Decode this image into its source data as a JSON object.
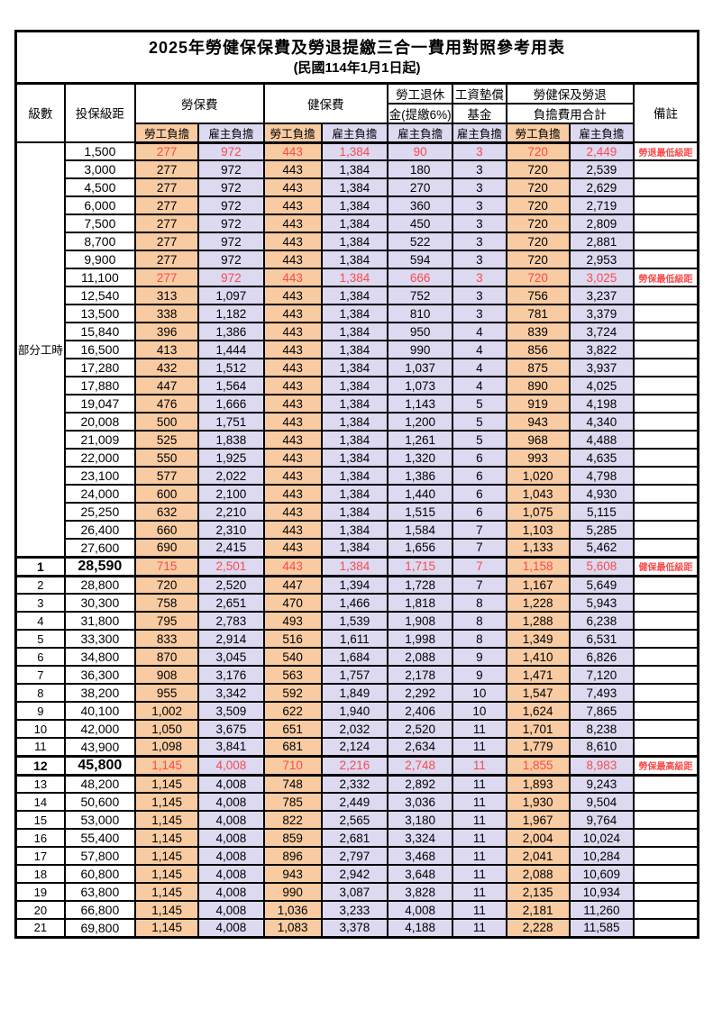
{
  "title": "2025年勞健保保費及勞退提繳三合一費用對照參考用表",
  "subtitle": "(民國114年1月1日起)",
  "colors": {
    "employee_column_bg": "#f8cba2",
    "employer_column_bg": "#dcd9f1",
    "highlight_red": "#fa4b4b",
    "grid": "#000000"
  },
  "header": {
    "level": "級數",
    "bracket": "投保級距",
    "labor_insurance": "勞保費",
    "health_insurance": "健保費",
    "pension_line1": "勞工退休",
    "pension_line2": "金(提繳6%)",
    "wage_fund_line1": "工資墊償",
    "wage_fund_line2": "基金",
    "total_line1": "勞健保及勞退",
    "total_line2": "負擔費用合計",
    "remark": "備註",
    "employee": "勞工負擔",
    "employer": "雇主負擔"
  },
  "part_time_label": "部分工時",
  "rows": [
    {
      "level": "",
      "bracket": "1,500",
      "li_emp": "277",
      "li_er": "972",
      "hi_emp": "443",
      "hi_er": "1,384",
      "pension_er": "90",
      "fund_er": "3",
      "total_emp": "720",
      "total_er": "2,449",
      "note": "勞退最低級距",
      "red": true,
      "bold": false,
      "thick": false
    },
    {
      "level": "",
      "bracket": "3,000",
      "li_emp": "277",
      "li_er": "972",
      "hi_emp": "443",
      "hi_er": "1,384",
      "pension_er": "180",
      "fund_er": "3",
      "total_emp": "720",
      "total_er": "2,539",
      "note": "",
      "red": false,
      "bold": false,
      "thick": false
    },
    {
      "level": "",
      "bracket": "4,500",
      "li_emp": "277",
      "li_er": "972",
      "hi_emp": "443",
      "hi_er": "1,384",
      "pension_er": "270",
      "fund_er": "3",
      "total_emp": "720",
      "total_er": "2,629",
      "note": "",
      "red": false,
      "bold": false,
      "thick": false
    },
    {
      "level": "",
      "bracket": "6,000",
      "li_emp": "277",
      "li_er": "972",
      "hi_emp": "443",
      "hi_er": "1,384",
      "pension_er": "360",
      "fund_er": "3",
      "total_emp": "720",
      "total_er": "2,719",
      "note": "",
      "red": false,
      "bold": false,
      "thick": false
    },
    {
      "level": "",
      "bracket": "7,500",
      "li_emp": "277",
      "li_er": "972",
      "hi_emp": "443",
      "hi_er": "1,384",
      "pension_er": "450",
      "fund_er": "3",
      "total_emp": "720",
      "total_er": "2,809",
      "note": "",
      "red": false,
      "bold": false,
      "thick": false
    },
    {
      "level": "",
      "bracket": "8,700",
      "li_emp": "277",
      "li_er": "972",
      "hi_emp": "443",
      "hi_er": "1,384",
      "pension_er": "522",
      "fund_er": "3",
      "total_emp": "720",
      "total_er": "2,881",
      "note": "",
      "red": false,
      "bold": false,
      "thick": false
    },
    {
      "level": "",
      "bracket": "9,900",
      "li_emp": "277",
      "li_er": "972",
      "hi_emp": "443",
      "hi_er": "1,384",
      "pension_er": "594",
      "fund_er": "3",
      "total_emp": "720",
      "total_er": "2,953",
      "note": "",
      "red": false,
      "bold": false,
      "thick": false
    },
    {
      "level": "",
      "bracket": "11,100",
      "li_emp": "277",
      "li_er": "972",
      "hi_emp": "443",
      "hi_er": "1,384",
      "pension_er": "666",
      "fund_er": "3",
      "total_emp": "720",
      "total_er": "3,025",
      "note": "勞保最低級距",
      "red": true,
      "bold": false,
      "thick": false
    },
    {
      "level": "",
      "bracket": "12,540",
      "li_emp": "313",
      "li_er": "1,097",
      "hi_emp": "443",
      "hi_er": "1,384",
      "pension_er": "752",
      "fund_er": "3",
      "total_emp": "756",
      "total_er": "3,237",
      "note": "",
      "red": false,
      "bold": false,
      "thick": false
    },
    {
      "level": "",
      "bracket": "13,500",
      "li_emp": "338",
      "li_er": "1,182",
      "hi_emp": "443",
      "hi_er": "1,384",
      "pension_er": "810",
      "fund_er": "3",
      "total_emp": "781",
      "total_er": "3,379",
      "note": "",
      "red": false,
      "bold": false,
      "thick": false
    },
    {
      "level": "",
      "bracket": "15,840",
      "li_emp": "396",
      "li_er": "1,386",
      "hi_emp": "443",
      "hi_er": "1,384",
      "pension_er": "950",
      "fund_er": "4",
      "total_emp": "839",
      "total_er": "3,724",
      "note": "",
      "red": false,
      "bold": false,
      "thick": false
    },
    {
      "level": "",
      "bracket": "16,500",
      "li_emp": "413",
      "li_er": "1,444",
      "hi_emp": "443",
      "hi_er": "1,384",
      "pension_er": "990",
      "fund_er": "4",
      "total_emp": "856",
      "total_er": "3,822",
      "note": "",
      "red": false,
      "bold": false,
      "thick": false
    },
    {
      "level": "",
      "bracket": "17,280",
      "li_emp": "432",
      "li_er": "1,512",
      "hi_emp": "443",
      "hi_er": "1,384",
      "pension_er": "1,037",
      "fund_er": "4",
      "total_emp": "875",
      "total_er": "3,937",
      "note": "",
      "red": false,
      "bold": false,
      "thick": false
    },
    {
      "level": "",
      "bracket": "17,880",
      "li_emp": "447",
      "li_er": "1,564",
      "hi_emp": "443",
      "hi_er": "1,384",
      "pension_er": "1,073",
      "fund_er": "4",
      "total_emp": "890",
      "total_er": "4,025",
      "note": "",
      "red": false,
      "bold": false,
      "thick": false
    },
    {
      "level": "",
      "bracket": "19,047",
      "li_emp": "476",
      "li_er": "1,666",
      "hi_emp": "443",
      "hi_er": "1,384",
      "pension_er": "1,143",
      "fund_er": "5",
      "total_emp": "919",
      "total_er": "4,198",
      "note": "",
      "red": false,
      "bold": false,
      "thick": false
    },
    {
      "level": "",
      "bracket": "20,008",
      "li_emp": "500",
      "li_er": "1,751",
      "hi_emp": "443",
      "hi_er": "1,384",
      "pension_er": "1,200",
      "fund_er": "5",
      "total_emp": "943",
      "total_er": "4,340",
      "note": "",
      "red": false,
      "bold": false,
      "thick": false
    },
    {
      "level": "",
      "bracket": "21,009",
      "li_emp": "525",
      "li_er": "1,838",
      "hi_emp": "443",
      "hi_er": "1,384",
      "pension_er": "1,261",
      "fund_er": "5",
      "total_emp": "968",
      "total_er": "4,488",
      "note": "",
      "red": false,
      "bold": false,
      "thick": false
    },
    {
      "level": "",
      "bracket": "22,000",
      "li_emp": "550",
      "li_er": "1,925",
      "hi_emp": "443",
      "hi_er": "1,384",
      "pension_er": "1,320",
      "fund_er": "6",
      "total_emp": "993",
      "total_er": "4,635",
      "note": "",
      "red": false,
      "bold": false,
      "thick": false
    },
    {
      "level": "",
      "bracket": "23,100",
      "li_emp": "577",
      "li_er": "2,022",
      "hi_emp": "443",
      "hi_er": "1,384",
      "pension_er": "1,386",
      "fund_er": "6",
      "total_emp": "1,020",
      "total_er": "4,798",
      "note": "",
      "red": false,
      "bold": false,
      "thick": false
    },
    {
      "level": "",
      "bracket": "24,000",
      "li_emp": "600",
      "li_er": "2,100",
      "hi_emp": "443",
      "hi_er": "1,384",
      "pension_er": "1,440",
      "fund_er": "6",
      "total_emp": "1,043",
      "total_er": "4,930",
      "note": "",
      "red": false,
      "bold": false,
      "thick": false
    },
    {
      "level": "",
      "bracket": "25,250",
      "li_emp": "632",
      "li_er": "2,210",
      "hi_emp": "443",
      "hi_er": "1,384",
      "pension_er": "1,515",
      "fund_er": "6",
      "total_emp": "1,075",
      "total_er": "5,115",
      "note": "",
      "red": false,
      "bold": false,
      "thick": false
    },
    {
      "level": "",
      "bracket": "26,400",
      "li_emp": "660",
      "li_er": "2,310",
      "hi_emp": "443",
      "hi_er": "1,384",
      "pension_er": "1,584",
      "fund_er": "7",
      "total_emp": "1,103",
      "total_er": "5,285",
      "note": "",
      "red": false,
      "bold": false,
      "thick": false
    },
    {
      "level": "",
      "bracket": "27,600",
      "li_emp": "690",
      "li_er": "2,415",
      "hi_emp": "443",
      "hi_er": "1,384",
      "pension_er": "1,656",
      "fund_er": "7",
      "total_emp": "1,133",
      "total_er": "5,462",
      "note": "",
      "red": false,
      "bold": false,
      "thick": false
    },
    {
      "level": "1",
      "bracket": "28,590",
      "li_emp": "715",
      "li_er": "2,501",
      "hi_emp": "443",
      "hi_er": "1,384",
      "pension_er": "1,715",
      "fund_er": "7",
      "total_emp": "1,158",
      "total_er": "5,608",
      "note": "健保最低級距",
      "red": true,
      "bold": true,
      "thick": true
    },
    {
      "level": "2",
      "bracket": "28,800",
      "li_emp": "720",
      "li_er": "2,520",
      "hi_emp": "447",
      "hi_er": "1,394",
      "pension_er": "1,728",
      "fund_er": "7",
      "total_emp": "1,167",
      "total_er": "5,649",
      "note": "",
      "red": false,
      "bold": false,
      "thick": false
    },
    {
      "level": "3",
      "bracket": "30,300",
      "li_emp": "758",
      "li_er": "2,651",
      "hi_emp": "470",
      "hi_er": "1,466",
      "pension_er": "1,818",
      "fund_er": "8",
      "total_emp": "1,228",
      "total_er": "5,943",
      "note": "",
      "red": false,
      "bold": false,
      "thick": false
    },
    {
      "level": "4",
      "bracket": "31,800",
      "li_emp": "795",
      "li_er": "2,783",
      "hi_emp": "493",
      "hi_er": "1,539",
      "pension_er": "1,908",
      "fund_er": "8",
      "total_emp": "1,288",
      "total_er": "6,238",
      "note": "",
      "red": false,
      "bold": false,
      "thick": false
    },
    {
      "level": "5",
      "bracket": "33,300",
      "li_emp": "833",
      "li_er": "2,914",
      "hi_emp": "516",
      "hi_er": "1,611",
      "pension_er": "1,998",
      "fund_er": "8",
      "total_emp": "1,349",
      "total_er": "6,531",
      "note": "",
      "red": false,
      "bold": false,
      "thick": false
    },
    {
      "level": "6",
      "bracket": "34,800",
      "li_emp": "870",
      "li_er": "3,045",
      "hi_emp": "540",
      "hi_er": "1,684",
      "pension_er": "2,088",
      "fund_er": "9",
      "total_emp": "1,410",
      "total_er": "6,826",
      "note": "",
      "red": false,
      "bold": false,
      "thick": false
    },
    {
      "level": "7",
      "bracket": "36,300",
      "li_emp": "908",
      "li_er": "3,176",
      "hi_emp": "563",
      "hi_er": "1,757",
      "pension_er": "2,178",
      "fund_er": "9",
      "total_emp": "1,471",
      "total_er": "7,120",
      "note": "",
      "red": false,
      "bold": false,
      "thick": false
    },
    {
      "level": "8",
      "bracket": "38,200",
      "li_emp": "955",
      "li_er": "3,342",
      "hi_emp": "592",
      "hi_er": "1,849",
      "pension_er": "2,292",
      "fund_er": "10",
      "total_emp": "1,547",
      "total_er": "7,493",
      "note": "",
      "red": false,
      "bold": false,
      "thick": false
    },
    {
      "level": "9",
      "bracket": "40,100",
      "li_emp": "1,002",
      "li_er": "3,509",
      "hi_emp": "622",
      "hi_er": "1,940",
      "pension_er": "2,406",
      "fund_er": "10",
      "total_emp": "1,624",
      "total_er": "7,865",
      "note": "",
      "red": false,
      "bold": false,
      "thick": false
    },
    {
      "level": "10",
      "bracket": "42,000",
      "li_emp": "1,050",
      "li_er": "3,675",
      "hi_emp": "651",
      "hi_er": "2,032",
      "pension_er": "2,520",
      "fund_er": "11",
      "total_emp": "1,701",
      "total_er": "8,238",
      "note": "",
      "red": false,
      "bold": false,
      "thick": false
    },
    {
      "level": "11",
      "bracket": "43,900",
      "li_emp": "1,098",
      "li_er": "3,841",
      "hi_emp": "681",
      "hi_er": "2,124",
      "pension_er": "2,634",
      "fund_er": "11",
      "total_emp": "1,779",
      "total_er": "8,610",
      "note": "",
      "red": false,
      "bold": false,
      "thick": false
    },
    {
      "level": "12",
      "bracket": "45,800",
      "li_emp": "1,145",
      "li_er": "4,008",
      "hi_emp": "710",
      "hi_er": "2,216",
      "pension_er": "2,748",
      "fund_er": "11",
      "total_emp": "1,855",
      "total_er": "8,983",
      "note": "勞保最高級距",
      "red": true,
      "bold": true,
      "thick": true
    },
    {
      "level": "13",
      "bracket": "48,200",
      "li_emp": "1,145",
      "li_er": "4,008",
      "hi_emp": "748",
      "hi_er": "2,332",
      "pension_er": "2,892",
      "fund_er": "11",
      "total_emp": "1,893",
      "total_er": "9,243",
      "note": "",
      "red": false,
      "bold": false,
      "thick": false
    },
    {
      "level": "14",
      "bracket": "50,600",
      "li_emp": "1,145",
      "li_er": "4,008",
      "hi_emp": "785",
      "hi_er": "2,449",
      "pension_er": "3,036",
      "fund_er": "11",
      "total_emp": "1,930",
      "total_er": "9,504",
      "note": "",
      "red": false,
      "bold": false,
      "thick": false
    },
    {
      "level": "15",
      "bracket": "53,000",
      "li_emp": "1,145",
      "li_er": "4,008",
      "hi_emp": "822",
      "hi_er": "2,565",
      "pension_er": "3,180",
      "fund_er": "11",
      "total_emp": "1,967",
      "total_er": "9,764",
      "note": "",
      "red": false,
      "bold": false,
      "thick": false
    },
    {
      "level": "16",
      "bracket": "55,400",
      "li_emp": "1,145",
      "li_er": "4,008",
      "hi_emp": "859",
      "hi_er": "2,681",
      "pension_er": "3,324",
      "fund_er": "11",
      "total_emp": "2,004",
      "total_er": "10,024",
      "note": "",
      "red": false,
      "bold": false,
      "thick": false
    },
    {
      "level": "17",
      "bracket": "57,800",
      "li_emp": "1,145",
      "li_er": "4,008",
      "hi_emp": "896",
      "hi_er": "2,797",
      "pension_er": "3,468",
      "fund_er": "11",
      "total_emp": "2,041",
      "total_er": "10,284",
      "note": "",
      "red": false,
      "bold": false,
      "thick": false
    },
    {
      "level": "18",
      "bracket": "60,800",
      "li_emp": "1,145",
      "li_er": "4,008",
      "hi_emp": "943",
      "hi_er": "2,942",
      "pension_er": "3,648",
      "fund_er": "11",
      "total_emp": "2,088",
      "total_er": "10,609",
      "note": "",
      "red": false,
      "bold": false,
      "thick": false
    },
    {
      "level": "19",
      "bracket": "63,800",
      "li_emp": "1,145",
      "li_er": "4,008",
      "hi_emp": "990",
      "hi_er": "3,087",
      "pension_er": "3,828",
      "fund_er": "11",
      "total_emp": "2,135",
      "total_er": "10,934",
      "note": "",
      "red": false,
      "bold": false,
      "thick": false
    },
    {
      "level": "20",
      "bracket": "66,800",
      "li_emp": "1,145",
      "li_er": "4,008",
      "hi_emp": "1,036",
      "hi_er": "3,233",
      "pension_er": "4,008",
      "fund_er": "11",
      "total_emp": "2,181",
      "total_er": "11,260",
      "note": "",
      "red": false,
      "bold": false,
      "thick": false
    },
    {
      "level": "21",
      "bracket": "69,800",
      "li_emp": "1,145",
      "li_er": "4,008",
      "hi_emp": "1,083",
      "hi_er": "3,378",
      "pension_er": "4,188",
      "fund_er": "11",
      "total_emp": "2,228",
      "total_er": "11,585",
      "note": "",
      "red": false,
      "bold": false,
      "thick": false
    }
  ]
}
